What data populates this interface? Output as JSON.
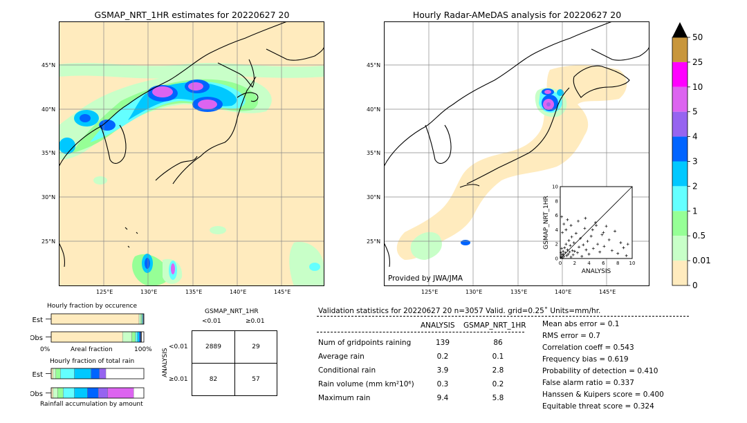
{
  "map_left": {
    "title": "GSMAP_NRT_1HR estimates for 20220627 20",
    "lat_ticks": [
      "45°N",
      "40°N",
      "35°N",
      "30°N",
      "25°N"
    ],
    "lon_ticks": [
      "125°E",
      "130°E",
      "135°E",
      "140°E",
      "145°E"
    ]
  },
  "map_right": {
    "title": "Hourly Radar-AMeDAS analysis for 20220627 20",
    "lat_ticks": [
      "45°N",
      "40°N",
      "35°N",
      "30°N",
      "25°N"
    ],
    "lon_ticks": [
      "125°E",
      "130°E",
      "135°E",
      "140°E",
      "145°E"
    ],
    "credit": "Provided by JWA/JMA"
  },
  "colorbar": {
    "labels": [
      "50",
      "25",
      "10",
      "5",
      "4",
      "3",
      "2",
      "1",
      "0.5",
      "0.01",
      "0"
    ],
    "colors": [
      "#c8963c",
      "#ff00ff",
      "#dc64f0",
      "#9664f0",
      "#0064ff",
      "#00c8ff",
      "#64ffff",
      "#96ff96",
      "#c8ffc8",
      "#ffebbe"
    ]
  },
  "chart_data": [
    {
      "type": "scatter",
      "xlabel": "ANALYSIS",
      "ylabel": "GSMAP_NRT_1HR",
      "xlim": [
        0,
        10
      ],
      "ylim": [
        0,
        10
      ],
      "x_ticks": [
        "0",
        "2",
        "4",
        "6",
        "8",
        "10"
      ],
      "y_ticks": [
        "0",
        "2",
        "4",
        "6",
        "8",
        "10"
      ],
      "diagonal": true,
      "points": [
        [
          0.1,
          0.2
        ],
        [
          0.2,
          0.5
        ],
        [
          0.3,
          0.1
        ],
        [
          0.4,
          1.0
        ],
        [
          0.5,
          0.3
        ],
        [
          0.6,
          1.5
        ],
        [
          0.7,
          0.8
        ],
        [
          0.8,
          2.0
        ],
        [
          0.9,
          0.4
        ],
        [
          1.0,
          1.2
        ],
        [
          1.1,
          0.6
        ],
        [
          1.2,
          2.5
        ],
        [
          1.3,
          0.9
        ],
        [
          1.4,
          1.8
        ],
        [
          1.5,
          0.2
        ],
        [
          1.6,
          3.0
        ],
        [
          1.7,
          1.1
        ],
        [
          1.8,
          0.5
        ],
        [
          1.9,
          2.2
        ],
        [
          2.0,
          1.0
        ],
        [
          2.2,
          3.5
        ],
        [
          2.4,
          0.8
        ],
        [
          2.6,
          1.6
        ],
        [
          2.8,
          2.8
        ],
        [
          3.0,
          0.3
        ],
        [
          3.2,
          1.9
        ],
        [
          3.4,
          4.2
        ],
        [
          3.6,
          1.2
        ],
        [
          3.8,
          2.4
        ],
        [
          4.0,
          0.6
        ],
        [
          4.3,
          3.1
        ],
        [
          4.6,
          1.4
        ],
        [
          4.9,
          5.0
        ],
        [
          5.2,
          2.0
        ],
        [
          5.5,
          0.9
        ],
        [
          5.8,
          3.3
        ],
        [
          6.1,
          1.7
        ],
        [
          6.4,
          4.5
        ],
        [
          6.8,
          2.6
        ],
        [
          7.2,
          1.1
        ],
        [
          7.6,
          3.8
        ],
        [
          8.0,
          0.7
        ],
        [
          8.4,
          2.2
        ],
        [
          8.8,
          1.5
        ],
        [
          9.2,
          0.4
        ],
        [
          9.4,
          2.0
        ],
        [
          0.3,
          3.6
        ],
        [
          0.5,
          4.8
        ],
        [
          0.2,
          5.8
        ],
        [
          0.8,
          4.0
        ],
        [
          1.0,
          5.4
        ],
        [
          1.5,
          4.6
        ],
        [
          2.5,
          5.2
        ],
        [
          3.5,
          5.6
        ],
        [
          4.5,
          4.0
        ],
        [
          5.0,
          4.6
        ],
        [
          6.0,
          3.6
        ],
        [
          0.1,
          0.8
        ],
        [
          0.2,
          1.4
        ],
        [
          0.4,
          0.6
        ]
      ]
    },
    {
      "type": "bar",
      "title": "Hourly fraction by occurence",
      "categories": [
        "Est",
        "Obs"
      ],
      "xlabel": "Areal fraction",
      "x_min_label": "0%",
      "x_max_label": "100%",
      "series": [
        {
          "color": "#ffebbe",
          "values": [
            0.948,
            0.77
          ]
        },
        {
          "color": "#c8ffc8",
          "values": [
            0.02,
            0.1
          ]
        },
        {
          "color": "#96ff96",
          "values": [
            0.01,
            0.04
          ]
        },
        {
          "color": "#64ffff",
          "values": [
            0.008,
            0.02
          ]
        },
        {
          "color": "#00c8ff",
          "values": [
            0.006,
            0.02
          ]
        },
        {
          "color": "#0064ff",
          "values": [
            0.004,
            0.015
          ]
        },
        {
          "color": "#000000",
          "values": [
            0.004,
            0.01
          ]
        }
      ]
    },
    {
      "type": "bar",
      "title": "Hourly fraction of total rain",
      "categories": [
        "Est",
        "Obs"
      ],
      "xlabel": "Rainfall accumulation by amount",
      "series": [
        {
          "color": "#ffebbe",
          "values": [
            0.02,
            0.02
          ]
        },
        {
          "color": "#c8ffc8",
          "values": [
            0.03,
            0.05
          ]
        },
        {
          "color": "#96ff96",
          "values": [
            0.05,
            0.06
          ]
        },
        {
          "color": "#64ffff",
          "values": [
            0.15,
            0.12
          ]
        },
        {
          "color": "#00c8ff",
          "values": [
            0.18,
            0.14
          ]
        },
        {
          "color": "#0064ff",
          "values": [
            0.09,
            0.12
          ]
        },
        {
          "color": "#9664f0",
          "values": [
            0.07,
            0.1
          ]
        },
        {
          "color": "#dc64f0",
          "values": [
            0.0,
            0.28
          ]
        }
      ]
    }
  ],
  "contingency": {
    "title": "GSMAP_NRT_1HR",
    "col_labels": [
      "<0.01",
      "≥0.01"
    ],
    "row_axis": "ANALYSIS",
    "row_labels": [
      "<0.01",
      "≥0.01"
    ],
    "cells": [
      [
        "2889",
        "29"
      ],
      [
        "82",
        "57"
      ]
    ]
  },
  "validation": {
    "header": "Validation statistics for 20220627 20  n=3057 Valid. grid=0.25˚ Units=mm/hr.",
    "col_analysis": "ANALYSIS",
    "col_gsmap": "GSMAP_NRT_1HR",
    "rows": [
      {
        "label": "Num of gridpoints raining",
        "analysis": "139",
        "gsmap": "86"
      },
      {
        "label": "Average rain",
        "analysis": "0.2",
        "gsmap": "0.1"
      },
      {
        "label": "Conditional rain",
        "analysis": "3.9",
        "gsmap": "2.8"
      },
      {
        "label": "Rain volume (mm km²10⁶)",
        "analysis": "0.3",
        "gsmap": "0.2"
      },
      {
        "label": "Maximum rain",
        "analysis": "9.4",
        "gsmap": "5.8"
      }
    ],
    "scores": [
      "Mean abs error =    0.1",
      "RMS error =    0.7",
      "Correlation coeff =  0.543",
      "Frequency bias =  0.619",
      "Probability of detection =  0.410",
      "False alarm ratio =  0.337",
      "Hanssen & Kuipers score =  0.400",
      "Equitable threat score =  0.324"
    ]
  }
}
